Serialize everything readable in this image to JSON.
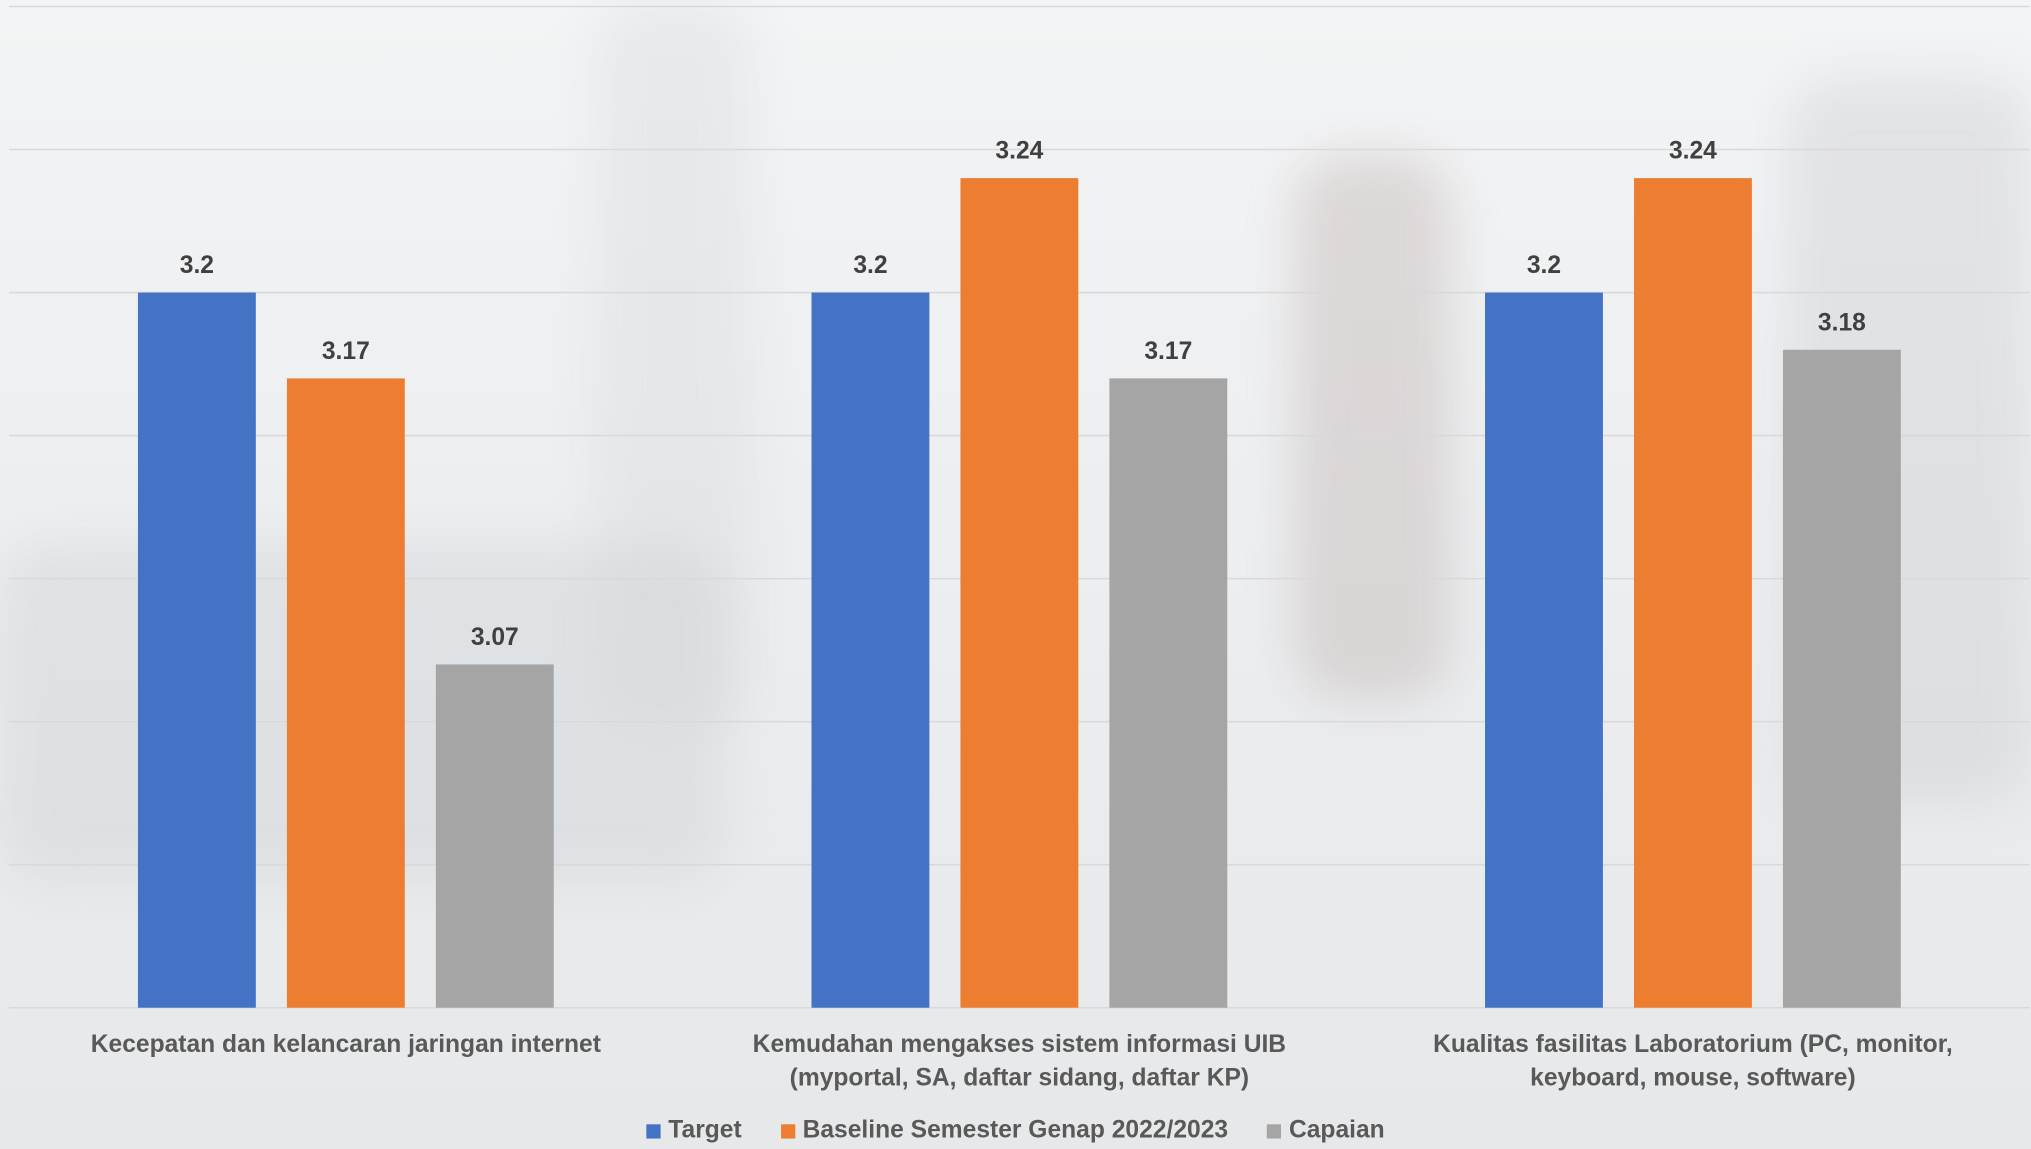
{
  "chart_data": {
    "type": "bar",
    "categories": [
      "Kecepatan dan kelancaran jaringan internet",
      "Kemudahan mengakses sistem informasi UIB (myportal, SA, daftar sidang, daftar KP)",
      "Kualitas fasilitas Laboratorium (PC, monitor, keyboard, mouse, software)"
    ],
    "series": [
      {
        "name": "Target",
        "color": "#4472c4",
        "values": [
          3.2,
          3.2,
          3.2
        ]
      },
      {
        "name": "Baseline Semester Genap 2022/2023",
        "color": "#ed7d31",
        "values": [
          3.17,
          3.24,
          3.24
        ]
      },
      {
        "name": "Capaian",
        "color": "#a5a5a5",
        "values": [
          3.07,
          3.17,
          3.18
        ]
      }
    ],
    "ylim": [
      2.95,
      3.3
    ],
    "yticks": [
      2.95,
      3.0,
      3.05,
      3.1,
      3.15,
      3.2,
      3.25,
      3.3
    ],
    "grid": true,
    "legend": "bottom"
  }
}
